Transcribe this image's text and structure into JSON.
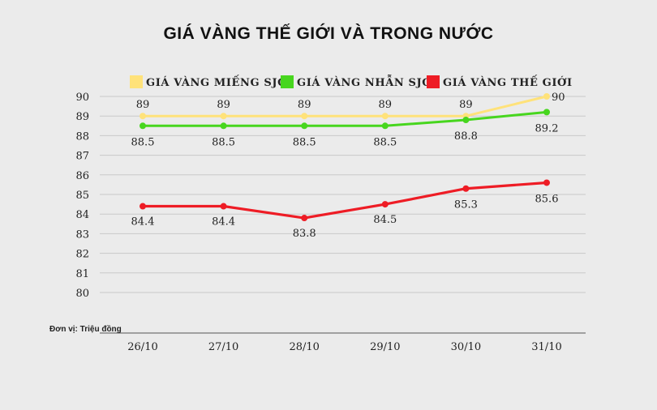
{
  "chart_data": {
    "type": "line",
    "title": "GIÁ VÀNG THẾ GIỚI VÀ TRONG NƯỚC",
    "categories": [
      "26/10",
      "27/10",
      "28/10",
      "29/10",
      "30/10",
      "31/10"
    ],
    "series": [
      {
        "name": "GIÁ VÀNG MIẾNG SJC",
        "color": "#ffe27a",
        "values": [
          89,
          89,
          89,
          89,
          89,
          90
        ]
      },
      {
        "name": "GIÁ VÀNG NHẪN SJC",
        "color": "#47d61e",
        "values": [
          88.5,
          88.5,
          88.5,
          88.5,
          88.8,
          89.2
        ]
      },
      {
        "name": "GIÁ VÀNG THẾ GIỚI",
        "color": "#ee1c25",
        "values": [
          84.4,
          84.4,
          83.8,
          84.5,
          85.3,
          85.6
        ]
      }
    ],
    "ylim": [
      80,
      90
    ],
    "yticks": [
      80,
      81,
      82,
      83,
      84,
      85,
      86,
      87,
      88,
      89,
      90
    ],
    "grid": true,
    "legend": "top",
    "unit_note": "Đơn vị: Triệu đồng"
  }
}
